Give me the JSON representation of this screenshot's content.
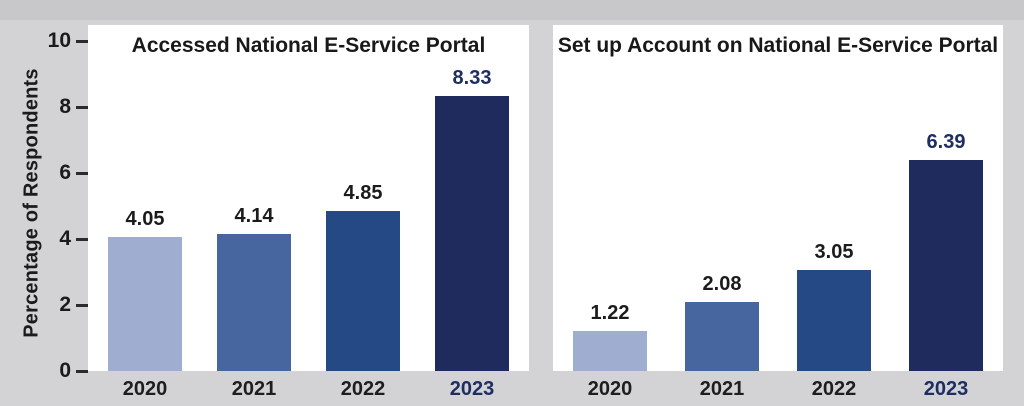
{
  "figure": {
    "y_axis_label": "Percentage of Respondents",
    "yticks": [
      10,
      8,
      6,
      4,
      2,
      0
    ],
    "background_color": "#d3d3d6",
    "top_strip_color": "#c8c8cb",
    "panel_color": "#ffffff",
    "tick_color": "#2b2b2b",
    "text_color": "#1b1b1b",
    "emphasis_color": "#1e2e63"
  },
  "chart_data": [
    {
      "type": "bar",
      "title": "Accessed National E-Service Portal",
      "categories": [
        "2020",
        "2021",
        "2022",
        "2023"
      ],
      "values": [
        4.05,
        4.14,
        4.85,
        8.33
      ],
      "data_labels": [
        "4.05",
        "4.14",
        "4.85",
        "8.33"
      ],
      "xlabel": "",
      "ylabel": "Percentage of Respondents",
      "ylim": [
        0,
        10
      ],
      "grid": false,
      "legend": "none",
      "bar_colors": [
        "#9fadd0",
        "#47669f",
        "#254985",
        "#1e2b5c"
      ],
      "emphasized_index": 3
    },
    {
      "type": "bar",
      "title": "Set up Account on National E-Service Portal",
      "categories": [
        "2020",
        "2021",
        "2022",
        "2023"
      ],
      "values": [
        1.22,
        2.08,
        3.05,
        6.39
      ],
      "data_labels": [
        "1.22",
        "2.08",
        "3.05",
        "6.39"
      ],
      "xlabel": "",
      "ylabel": "Percentage of Respondents",
      "ylim": [
        0,
        10
      ],
      "grid": false,
      "legend": "none",
      "bar_colors": [
        "#9fadd0",
        "#47669f",
        "#254985",
        "#1e2b5c"
      ],
      "emphasized_index": 3
    }
  ]
}
